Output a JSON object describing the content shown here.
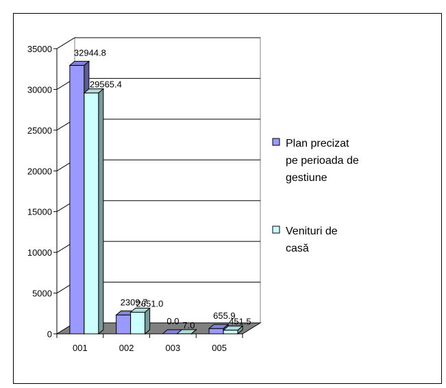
{
  "chart_data": {
    "type": "bar",
    "categories": [
      "001",
      "002",
      "003",
      "005"
    ],
    "series": [
      {
        "name": "Plan precizat pe perioada de gestiune",
        "legend_lines": [
          "Plan precizat",
          "pe perioada de",
          "gestiune"
        ],
        "values": [
          32944.8,
          2309.7,
          0.0,
          655.9
        ],
        "labels": [
          "32944.8",
          "2309.7",
          "0.0",
          "655.9"
        ],
        "color": "#9999ff"
      },
      {
        "name": "Venituri de casă",
        "legend_lines": [
          "Venituri de",
          "casă"
        ],
        "values": [
          29565.4,
          2651.0,
          7.0,
          451.5
        ],
        "labels": [
          "29565.4",
          "2651.0",
          "7.0",
          "451.5"
        ],
        "color": "#ccffff"
      }
    ],
    "yticks": [
      "0",
      "5000",
      "10000",
      "15000",
      "20000",
      "25000",
      "30000",
      "35000"
    ],
    "ylim": [
      0,
      35000
    ],
    "three_d": true,
    "grid": true,
    "legend": "right"
  }
}
